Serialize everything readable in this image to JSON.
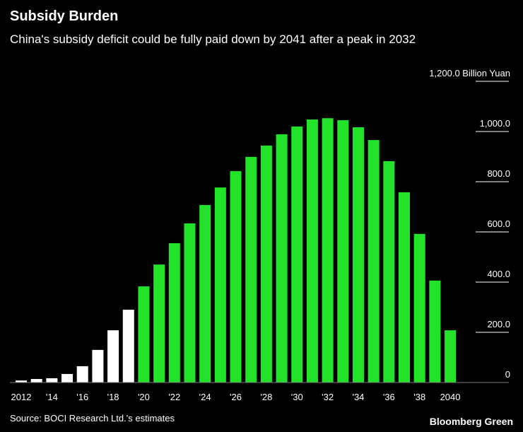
{
  "chart_data": {
    "type": "bar",
    "title": "Subsidy Burden",
    "subtitle": "China's subsidy deficit could be fully paid down by 2041 after a peak in 2032",
    "source": "Source: BOCI Research Ltd.'s estimates",
    "brand": "Bloomberg Green",
    "categories": [
      "2012",
      null,
      "'14",
      null,
      "'16",
      null,
      "'18",
      null,
      "'20",
      null,
      "'22",
      null,
      "'24",
      null,
      "'26",
      null,
      "'28",
      null,
      "'30",
      null,
      "'32",
      null,
      "'34",
      null,
      "'36",
      null,
      "'38",
      null,
      "2040",
      null
    ],
    "values": [
      8,
      14,
      17,
      34,
      65,
      130,
      208,
      290,
      383,
      470,
      555,
      634,
      707,
      777,
      842,
      899,
      944,
      989,
      1020,
      1048,
      1053,
      1045,
      1017,
      966,
      882,
      758,
      592,
      406,
      208,
      0
    ],
    "colors": [
      "#ffffff",
      "#ffffff",
      "#ffffff",
      "#ffffff",
      "#ffffff",
      "#ffffff",
      "#ffffff",
      "#ffffff",
      "#22e32a",
      "#22e32a",
      "#22e32a",
      "#22e32a",
      "#22e32a",
      "#22e32a",
      "#22e32a",
      "#22e32a",
      "#22e32a",
      "#22e32a",
      "#22e32a",
      "#22e32a",
      "#22e32a",
      "#22e32a",
      "#22e32a",
      "#22e32a",
      "#22e32a",
      "#22e32a",
      "#22e32a",
      "#22e32a",
      "#22e32a",
      "#22e32a"
    ],
    "ylim": [
      0,
      1200
    ],
    "yticks": [
      0,
      {
        "value": 200,
        "label": "200.0"
      },
      {
        "value": 400,
        "label": "400.0"
      },
      {
        "value": 600,
        "label": "600.0"
      },
      {
        "value": 800,
        "label": "800.0"
      },
      {
        "value": 1000,
        "label": "1,000.0"
      },
      {
        "value": 1200,
        "label": "1,200.0 Billion Yuan"
      }
    ]
  }
}
